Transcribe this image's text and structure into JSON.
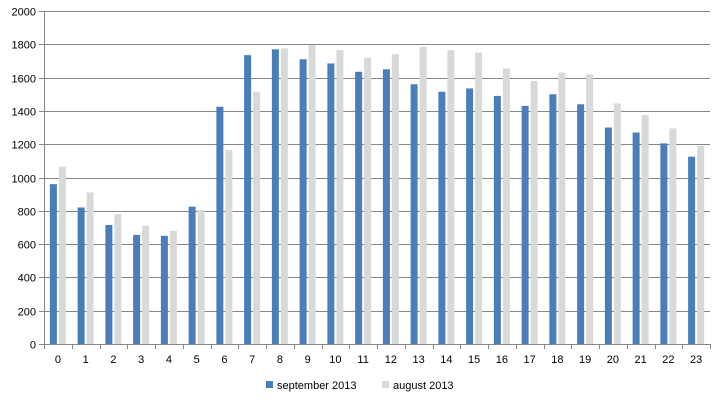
{
  "chart_data": {
    "type": "bar",
    "categories": [
      "0",
      "1",
      "2",
      "3",
      "4",
      "5",
      "6",
      "7",
      "8",
      "9",
      "10",
      "11",
      "12",
      "13",
      "14",
      "15",
      "16",
      "17",
      "18",
      "19",
      "20",
      "21",
      "22",
      "23"
    ],
    "series": [
      {
        "name": "september 2013",
        "color": "#4a7ebb",
        "values": [
          960,
          820,
          715,
          655,
          650,
          825,
          1425,
          1735,
          1770,
          1710,
          1685,
          1635,
          1650,
          1560,
          1515,
          1535,
          1490,
          1430,
          1500,
          1440,
          1300,
          1270,
          1205,
          1125
        ]
      },
      {
        "name": "august 2013",
        "color": "#d9d9d9",
        "values": [
          1065,
          910,
          780,
          710,
          680,
          805,
          1165,
          1515,
          1775,
          1795,
          1765,
          1720,
          1740,
          1785,
          1765,
          1750,
          1655,
          1580,
          1630,
          1620,
          1445,
          1375,
          1295,
          1190
        ]
      }
    ],
    "yticks": [
      "0",
      "200",
      "400",
      "600",
      "800",
      "1000",
      "1200",
      "1400",
      "1600",
      "1800",
      "2000"
    ],
    "ylim": [
      0,
      2000
    ],
    "grid": true,
    "legend_position": "bottom",
    "title": "",
    "xlabel": "",
    "ylabel": ""
  }
}
